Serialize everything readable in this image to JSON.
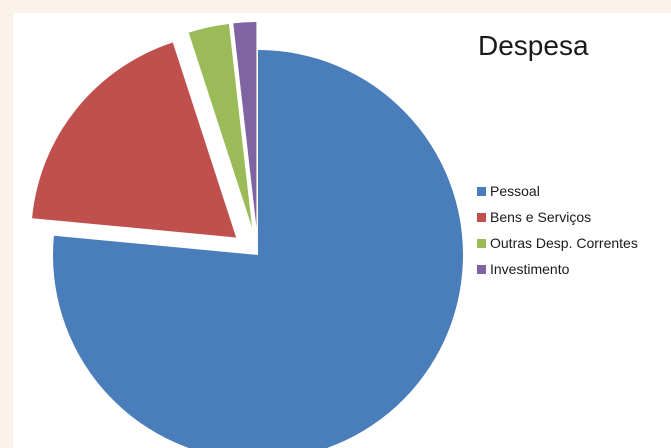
{
  "chart_data": {
    "type": "pie",
    "title": "Despesa",
    "legend_position": "right",
    "categories": [
      "Pessoal",
      "Bens e Serviços",
      "Outras Desp. Correntes",
      "Investimento"
    ],
    "values": [
      76.5,
      18.5,
      3.2,
      1.8
    ],
    "colors": [
      "#4a7ebb",
      "#c0504d",
      "#9bbb59",
      "#8064a2"
    ],
    "exploded": [
      false,
      true,
      true,
      true
    ]
  }
}
